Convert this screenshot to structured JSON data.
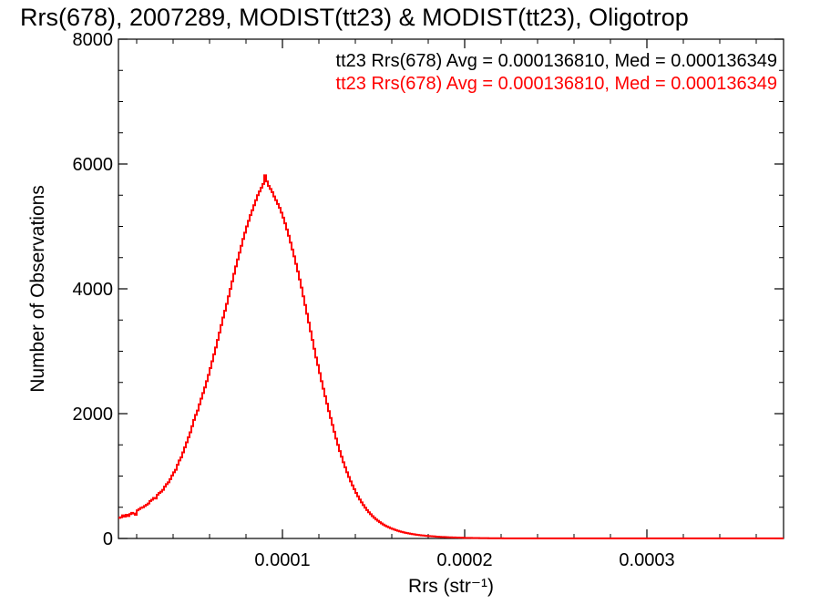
{
  "chart_data": {
    "type": "histogram",
    "title": "Rrs(678), 2007289, MODIST(tt23) & MODIST(tt23), Oligotrop",
    "xlabel": "Rrs (str⁻¹)",
    "ylabel": "Number of Observations",
    "xlim": [
      1e-05,
      0.000375
    ],
    "ylim": [
      0,
      8000
    ],
    "xticks": [
      0.0001,
      0.0002,
      0.0003
    ],
    "xtick_labels": [
      "0.0001",
      "0.0002",
      "0.0003"
    ],
    "yticks": [
      0,
      2000,
      4000,
      6000,
      8000
    ],
    "ytick_labels": [
      "0",
      "2000",
      "4000",
      "6000",
      "8000"
    ],
    "grid": false,
    "annotations": [
      {
        "text": "tt23 Rrs(678) Avg = 0.000136810, Med = 0.000136349",
        "color": "#000000"
      },
      {
        "text": "tt23 Rrs(678) Avg = 0.000136810, Med = 0.000136349",
        "color": "#ff0000"
      }
    ],
    "colors": {
      "series_black": "#000000",
      "series_red": "#ff0000"
    },
    "series": [
      {
        "color": "#ff0000",
        "x_start": 1e-05,
        "bin_width": 1e-06,
        "values": [
          330,
          340,
          370,
          350,
          380,
          360,
          390,
          410,
          400,
          380,
          450,
          470,
          490,
          500,
          520,
          540,
          560,
          600,
          620,
          650,
          640,
          700,
          730,
          750,
          780,
          830,
          870,
          900,
          950,
          1010,
          1060,
          1100,
          1180,
          1250,
          1300,
          1380,
          1460,
          1540,
          1620,
          1700,
          1800,
          1900,
          1980,
          2050,
          2150,
          2240,
          2330,
          2420,
          2520,
          2620,
          2730,
          2840,
          2950,
          3060,
          3180,
          3300,
          3420,
          3540,
          3650,
          3760,
          3880,
          4000,
          4120,
          4240,
          4360,
          4470,
          4580,
          4690,
          4800,
          4900,
          5000,
          5090,
          5180,
          5260,
          5340,
          5420,
          5500,
          5560,
          5620,
          5680,
          5820,
          5720,
          5650,
          5600,
          5550,
          5480,
          5420,
          5360,
          5300,
          5220,
          5140,
          5050,
          4950,
          4850,
          4740,
          4630,
          4520,
          4400,
          4280,
          4150,
          4020,
          3880,
          3740,
          3600,
          3460,
          3320,
          3180,
          3040,
          2900,
          2780,
          2650,
          2520,
          2400,
          2280,
          2160,
          2040,
          1930,
          1820,
          1710,
          1600,
          1500,
          1400,
          1310,
          1220,
          1140,
          1060,
          985,
          915,
          850,
          790,
          730,
          675,
          625,
          578,
          534,
          493,
          455,
          420,
          388,
          358,
          330,
          305,
          282,
          261,
          241,
          223,
          207,
          192,
          178,
          165,
          153,
          142,
          132,
          123,
          114,
          106,
          99,
          92,
          86,
          80,
          75,
          70,
          65,
          61,
          57,
          53,
          50,
          47,
          44,
          41,
          38,
          36,
          34,
          32,
          30,
          28,
          26,
          24,
          23,
          22,
          20,
          19,
          18,
          17,
          16,
          15,
          14,
          13,
          12,
          11,
          10,
          10,
          9,
          9,
          8,
          8,
          7,
          7,
          6,
          6,
          5,
          5,
          5,
          4,
          4,
          4,
          3,
          3,
          3,
          3,
          3,
          2,
          2,
          2,
          2,
          2,
          2,
          2,
          1,
          1,
          1,
          1,
          1,
          1,
          1,
          1,
          1,
          1,
          1,
          1,
          1,
          1,
          1,
          1,
          1,
          1,
          1,
          1,
          1,
          1,
          1,
          1,
          1,
          1,
          1,
          1,
          1,
          1,
          1,
          1,
          1,
          1,
          1,
          1,
          1,
          1,
          1,
          1,
          1,
          1,
          1,
          1,
          1,
          1,
          1,
          1,
          1,
          1,
          1,
          1,
          1,
          1,
          1,
          1,
          1,
          1,
          1,
          1,
          1,
          1,
          1,
          1,
          1,
          1,
          1,
          1,
          1,
          1,
          1,
          1,
          1,
          1,
          1,
          1,
          1,
          1,
          1,
          1,
          1,
          1,
          1,
          1,
          1,
          1,
          1,
          1,
          1,
          1,
          1,
          1,
          1,
          1,
          1,
          1,
          1,
          1,
          1,
          1,
          1,
          1,
          1,
          1,
          1,
          1,
          1,
          1,
          1,
          1,
          1,
          1,
          1,
          1,
          1,
          1,
          1,
          1,
          1,
          1,
          1,
          1,
          1,
          1,
          1,
          1,
          1,
          1,
          1,
          1,
          1,
          1,
          1,
          1,
          1,
          1,
          1,
          1,
          1,
          1,
          1,
          1,
          1,
          1,
          1,
          1,
          1,
          1,
          1,
          1,
          1,
          1,
          1,
          1,
          1,
          1,
          1,
          1,
          1,
          1,
          1,
          1,
          1,
          1,
          1,
          1,
          1,
          1,
          1,
          1,
          1
        ]
      }
    ]
  }
}
